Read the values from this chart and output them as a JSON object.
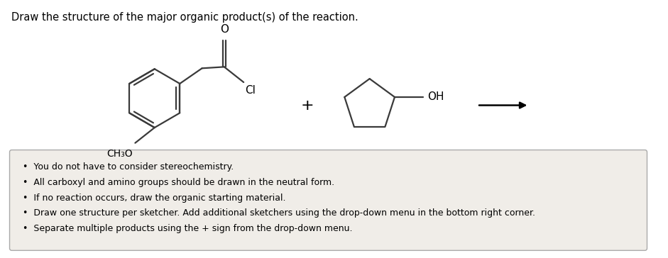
{
  "title": "Draw the structure of the major organic product(s) of the reaction.",
  "background_color": "#ffffff",
  "box_bg": "#f0ede8",
  "box_edge": "#aaaaaa",
  "bullet_points": [
    "You do not have to consider stereochemistry.",
    "All carboxyl and amino groups should be drawn in the neutral form.",
    "If no reaction occurs, draw the organic starting material.",
    "Draw one structure per sketcher. Add additional sketchers using the drop-down menu in the bottom right corner.",
    "Separate multiple products using the + sign from the drop-down menu."
  ],
  "line_color": "#3a3a3a",
  "lw": 1.6
}
